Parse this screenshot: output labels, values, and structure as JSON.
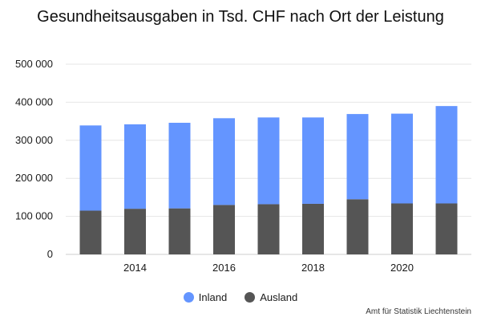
{
  "chart_data": {
    "type": "bar",
    "stacked": true,
    "title": "Gesundheitsausgaben in Tsd. CHF nach Ort der Leistung",
    "categories": [
      "2013",
      "2014",
      "2015",
      "2016",
      "2017",
      "2018",
      "2019",
      "2020",
      "2021"
    ],
    "series": [
      {
        "name": "Ausland",
        "color": "#555555",
        "values": [
          115000,
          120000,
          121000,
          130000,
          132000,
          133000,
          145000,
          134000,
          134000
        ]
      },
      {
        "name": "Inland",
        "color": "#6495ff",
        "values": [
          224000,
          222000,
          225000,
          228000,
          228000,
          227000,
          224000,
          236000,
          256000
        ]
      }
    ],
    "ylim": [
      0,
      500000
    ],
    "yticks": [
      {
        "value": 0,
        "label": "0"
      },
      {
        "value": 100000,
        "label": "100 000"
      },
      {
        "value": 200000,
        "label": "200 000"
      },
      {
        "value": 300000,
        "label": "300 000"
      },
      {
        "value": 400000,
        "label": "400 000"
      },
      {
        "value": 500000,
        "label": "500 000"
      }
    ],
    "xticks": [
      "2014",
      "2016",
      "2018",
      "2020"
    ],
    "grid": true,
    "legend": [
      {
        "label": "Inland",
        "color": "#6495ff"
      },
      {
        "label": "Ausland",
        "color": "#555555"
      }
    ],
    "legend_position": "bottom-center",
    "credit": "Amt für Statistik Liechtenstein"
  }
}
